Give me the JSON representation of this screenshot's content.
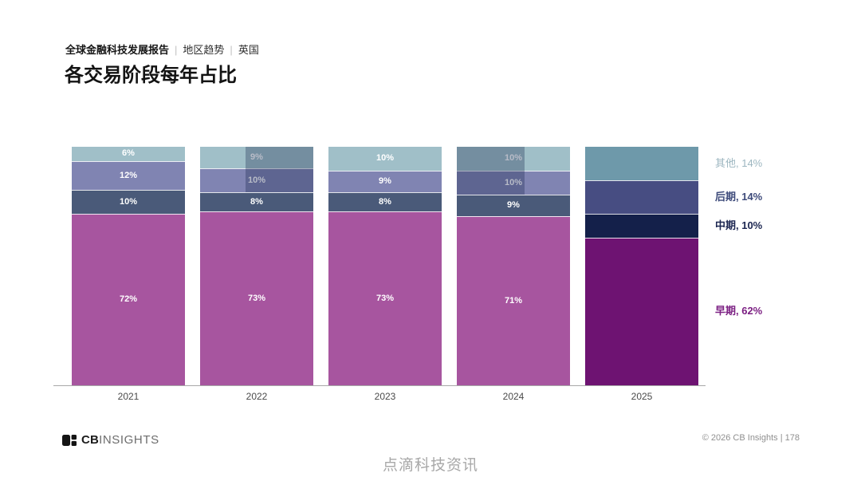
{
  "header": {
    "breadcrumb": {
      "report_title": "全球金融科技发展报告",
      "separator": "|",
      "section": "地区趋势",
      "region": "英国"
    },
    "page_title": "各交易阶段每年占比"
  },
  "chart_data": {
    "type": "bar",
    "stacked": true,
    "value_unit": "%",
    "ylim": [
      0,
      100
    ],
    "grid": false,
    "legend_position": "right",
    "categories": [
      "2021",
      "2022",
      "2023",
      "2024",
      "2025"
    ],
    "series": [
      {
        "name": "其他",
        "values": [
          6,
          9,
          10,
          10,
          14
        ],
        "color": "#a0bfc8",
        "final_year_color": "#6e99aa"
      },
      {
        "name": "后期",
        "values": [
          12,
          10,
          9,
          10,
          14
        ],
        "color": "#8084b2",
        "final_year_color": "#474d82"
      },
      {
        "name": "中期",
        "values": [
          10,
          8,
          8,
          9,
          10
        ],
        "color": "#4a5a79",
        "final_year_color": "#14204a"
      },
      {
        "name": "早期",
        "values": [
          72,
          73,
          73,
          71,
          62
        ],
        "color": "#a7559f",
        "final_year_color": "#6e1372"
      }
    ],
    "bar_labels_shown_for": [
      "2021",
      "2022",
      "2023",
      "2024"
    ],
    "bar_label_color": "#ffffff",
    "legend": [
      {
        "label": "其他, 14%",
        "color": "#9cb6c0",
        "bold": false
      },
      {
        "label": "后期, 14%",
        "color": "#3d4a7a",
        "bold": true
      },
      {
        "label": "中期, 10%",
        "color": "#1b2550",
        "bold": true
      },
      {
        "label": "早期, 62%",
        "color": "#7c2083",
        "bold": true
      }
    ],
    "highlight_overlays": [
      {
        "category": "2022",
        "x_pct": 40,
        "w_pct": 60,
        "covers_top_series": 2
      },
      {
        "category": "2024",
        "x_pct": 0,
        "w_pct": 60,
        "covers_top_series": 2
      }
    ]
  },
  "footer": {
    "logo_cb": "CB",
    "logo_insights": "INSIGHTS",
    "copyright": "© 2026 CB Insights  |  178"
  },
  "watermark": "点滴科技资讯"
}
